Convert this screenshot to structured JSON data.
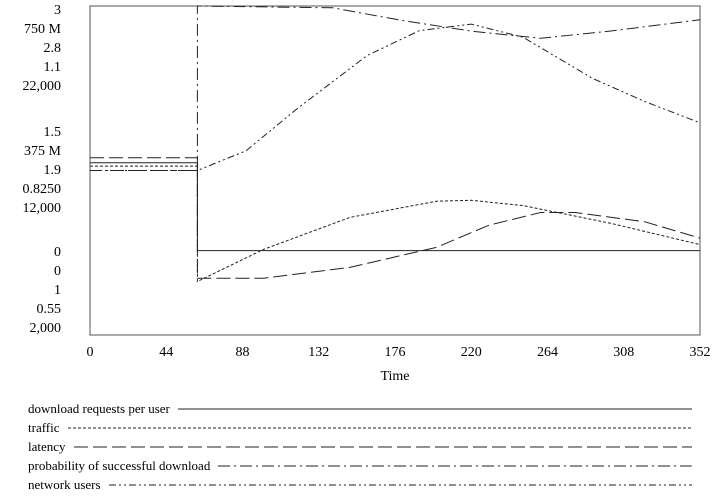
{
  "chart_data": {
    "type": "line",
    "xlabel": "Time",
    "xlim": [
      0,
      352
    ],
    "x_ticks": [
      "0",
      "44",
      "88",
      "132",
      "176",
      "220",
      "264",
      "308",
      "352"
    ],
    "y_axes": [
      {
        "series": "download requests per user",
        "top": "3",
        "mid": "1.5",
        "bottom": "0",
        "ylim": [
          0,
          3
        ]
      },
      {
        "series": "traffic",
        "top": "750 M",
        "mid": "375 M",
        "bottom": "0",
        "ylim": [
          0,
          750000000
        ]
      },
      {
        "series": "latency",
        "top": "2.8",
        "mid": "1.9",
        "bottom": "1",
        "ylim": [
          1,
          2.8
        ]
      },
      {
        "series": "probability of successful download",
        "top": "1.1",
        "mid": "0.8250",
        "bottom": "0.55",
        "ylim": [
          0.55,
          1.1
        ]
      },
      {
        "series": "network users",
        "top": "22,000",
        "mid": "12,000",
        "bottom": "2,000",
        "ylim": [
          2000,
          22000
        ]
      }
    ],
    "series": [
      {
        "name": "download requests per user",
        "style": "solid",
        "x": [
          0,
          62,
          62,
          352
        ],
        "y": [
          1.57,
          1.57,
          0.77,
          0.77
        ]
      },
      {
        "name": "traffic",
        "style": "short-dash",
        "x": [
          0,
          62,
          62,
          100,
          150,
          200,
          220,
          250,
          300,
          352
        ],
        "y": [
          385000000,
          385000000,
          122000000,
          195000000,
          268000000,
          305000000,
          307000000,
          295000000,
          255000000,
          206000000
        ]
      },
      {
        "name": "latency",
        "style": "long-dash",
        "x": [
          0,
          62,
          62,
          100,
          150,
          200,
          230,
          260,
          280,
          320,
          352
        ],
        "y": [
          1.97,
          1.97,
          1.31,
          1.31,
          1.37,
          1.48,
          1.6,
          1.67,
          1.67,
          1.62,
          1.53
        ]
      },
      {
        "name": "probability of successful download",
        "style": "dash-dot",
        "x": [
          0,
          62,
          62,
          140,
          180,
          220,
          260,
          300,
          352
        ],
        "y": [
          0.825,
          0.825,
          1.1,
          1.097,
          1.076,
          1.058,
          1.046,
          1.058,
          1.077
        ]
      },
      {
        "name": "network users",
        "style": "dash-dot-dot",
        "x": [
          0,
          62,
          90,
          120,
          160,
          190,
          220,
          250,
          290,
          320,
          352
        ],
        "y": [
          12000,
          12000,
          13200,
          15800,
          19000,
          20500,
          20900,
          20100,
          17600,
          16200,
          14900
        ]
      }
    ]
  },
  "legend": [
    {
      "label": "download requests per user"
    },
    {
      "label": "traffic"
    },
    {
      "label": "latency"
    },
    {
      "label": "probability of successful download"
    },
    {
      "label": "network users"
    }
  ]
}
